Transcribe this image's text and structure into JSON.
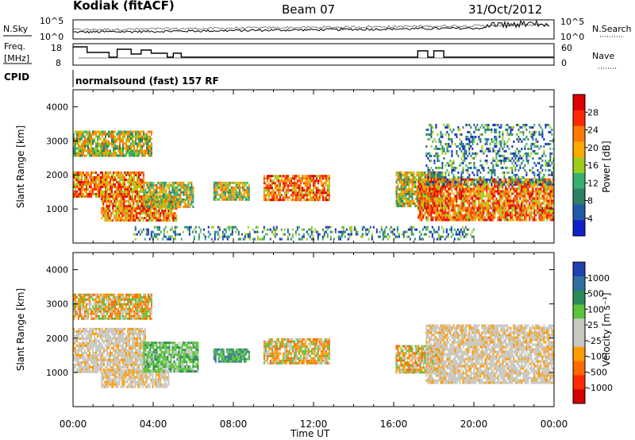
{
  "header": {
    "radar": "Kodiak (fitACF)",
    "beam": "Beam 07",
    "date": "31/Oct/2012"
  },
  "top_panel": {
    "left_label": "N.Sky",
    "right_label": "N.Search",
    "tick_hi": "10^5",
    "tick_lo": "10^0",
    "right_tick_hi": "10^5",
    "right_tick_lo": "10^0"
  },
  "freq_panel": {
    "left_label_1": "Freq.",
    "left_label_2": "[MHz]",
    "right_label": "Nave",
    "left_ticks": [
      "18",
      "8"
    ],
    "right_ticks": [
      "60",
      "0"
    ]
  },
  "cpid": {
    "label": "CPID",
    "program": "normalsound (fast) 157 RF"
  },
  "chart_data": [
    {
      "type": "heatmap",
      "title": "Power",
      "ylabel": "Slant Range [km]",
      "xlim_hours": [
        0,
        24
      ],
      "ylim_km": [
        0,
        4500
      ],
      "yticks": [
        "1000",
        "2000",
        "3000",
        "4000"
      ],
      "colorbar": {
        "label": "Power [dB]",
        "ticks": [
          "28",
          "24",
          "20",
          "16",
          "12",
          "8",
          "4"
        ],
        "colors": [
          "#dc0000",
          "#ff2a00",
          "#ff7a00",
          "#ffa800",
          "#9dcc1e",
          "#36b070",
          "#2f7f64",
          "#1f5aa8",
          "#1020c8"
        ]
      },
      "echo_regions": [
        {
          "t0": 0.0,
          "t1": 3.9,
          "r0": 2600,
          "r1": 3300,
          "level": "medium"
        },
        {
          "t0": 0.0,
          "t1": 3.5,
          "r0": 1400,
          "r1": 2100,
          "level": "high"
        },
        {
          "t0": 1.4,
          "t1": 5.2,
          "r0": 700,
          "r1": 1400,
          "level": "high"
        },
        {
          "t0": 3.5,
          "t1": 6.0,
          "r0": 1100,
          "r1": 1800,
          "level": "medium"
        },
        {
          "t0": 7.0,
          "t1": 8.8,
          "r0": 1300,
          "r1": 1800,
          "level": "medium"
        },
        {
          "t0": 9.5,
          "t1": 12.8,
          "r0": 1300,
          "r1": 2000,
          "level": "high"
        },
        {
          "t0": 16.1,
          "t1": 18.4,
          "r0": 1100,
          "r1": 2100,
          "level": "medium"
        },
        {
          "t0": 17.2,
          "t1": 24.0,
          "r0": 700,
          "r1": 1900,
          "level": "high"
        },
        {
          "t0": 17.6,
          "t1": 24.0,
          "r0": 1700,
          "r1": 3500,
          "level": "low"
        },
        {
          "t0": 3.0,
          "t1": 20.0,
          "r0": 100,
          "r1": 500,
          "level": "low"
        }
      ]
    },
    {
      "type": "heatmap",
      "title": "Velocity",
      "ylabel": "Slant Range [km]",
      "xlabel": "Time UT",
      "xlim_hours": [
        0,
        24
      ],
      "ylim_km": [
        0,
        4500
      ],
      "yticks": [
        "1000",
        "2000",
        "3000",
        "4000"
      ],
      "colorbar": {
        "label": "Velocity [m s⁻¹]",
        "ticks": [
          "1000",
          "500",
          "100",
          "25",
          "-25",
          "-100",
          "-500",
          "-1000"
        ],
        "colors": [
          "#2040b0",
          "#2f6fa0",
          "#2a8a5a",
          "#5bc43a",
          "#c8c8c0",
          "#c8c8c0",
          "#ff9a00",
          "#ff6a00",
          "#ff2a00",
          "#d40000"
        ]
      },
      "echo_regions": [
        {
          "t0": 0.0,
          "t1": 3.9,
          "r0": 2600,
          "r1": 3300,
          "level": "orange"
        },
        {
          "t0": 0.0,
          "t1": 3.6,
          "r0": 1000,
          "r1": 2300,
          "level": "grey"
        },
        {
          "t0": 1.4,
          "t1": 4.8,
          "r0": 600,
          "r1": 1100,
          "level": "grey"
        },
        {
          "t0": 3.5,
          "t1": 6.2,
          "r0": 1000,
          "r1": 1900,
          "level": "green"
        },
        {
          "t0": 7.0,
          "t1": 8.8,
          "r0": 1300,
          "r1": 1700,
          "level": "teal"
        },
        {
          "t0": 9.5,
          "t1": 12.8,
          "r0": 1300,
          "r1": 2000,
          "level": "orange"
        },
        {
          "t0": 16.1,
          "t1": 18.4,
          "r0": 1000,
          "r1": 1800,
          "level": "orange"
        },
        {
          "t0": 17.6,
          "t1": 24.0,
          "r0": 700,
          "r1": 2400,
          "level": "grey"
        }
      ]
    }
  ],
  "time_axis": {
    "ticks": [
      "00:00",
      "04:00",
      "08:00",
      "12:00",
      "16:00",
      "20:00",
      "00:00"
    ],
    "label": "Time UT"
  }
}
